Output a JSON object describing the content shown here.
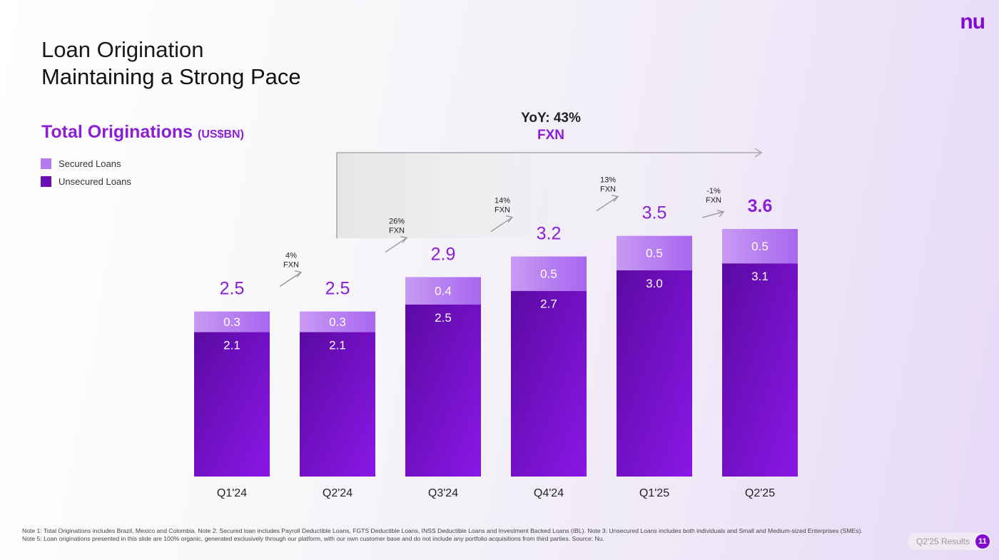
{
  "header": {
    "title": "Loan Origination",
    "subtitle": "Maintaining a Strong Pace",
    "logo": "nu"
  },
  "chart_data": {
    "type": "bar",
    "stacked": true,
    "title": "Total Originations",
    "unit": "(US$BN)",
    "categories": [
      "Q1'24",
      "Q2'24",
      "Q3'24",
      "Q4'24",
      "Q1'25",
      "Q2'25"
    ],
    "series": [
      {
        "name": "Unsecured Loans",
        "color": "#6a0fb8",
        "values": [
          2.1,
          2.1,
          2.5,
          2.7,
          3.0,
          3.1
        ]
      },
      {
        "name": "Secured Loans",
        "color": "#b57cf0",
        "values": [
          0.3,
          0.3,
          0.4,
          0.5,
          0.5,
          0.5
        ]
      }
    ],
    "totals": [
      "2.5",
      "2.5",
      "2.9",
      "3.2",
      "3.5",
      "3.6"
    ],
    "growth": [
      {
        "pct": "4%",
        "label": "FXN"
      },
      {
        "pct": "26%",
        "label": "FXN"
      },
      {
        "pct": "14%",
        "label": "FXN"
      },
      {
        "pct": "13%",
        "label": "FXN"
      },
      {
        "pct": "-1%",
        "label": "FXN"
      }
    ],
    "yoy": {
      "text": "YoY: 43%",
      "label": "FXN"
    },
    "legend_position": "top-left",
    "grid": false
  },
  "footer": {
    "notes": "Note 1: Total Originations includes Brazil, Mexico and Colombia. Note 2: Secured loan includes Payroll Deductible Loans, FGTS Deductible Loans, INSS Deductible Loans and Investment Backed Loans (IBL). Note 3: Unsecured Loans includes both individuals and Small and Medium-sized Enterprises (SMEs). Note 5: Loan originations presented in this slide are 100% organic, generated exclusively through our platform, with our own customer base and do not include any portfolio acquisitions from third parties. Source: Nu.",
    "badge": "Q2'25 Results",
    "page": "11"
  }
}
